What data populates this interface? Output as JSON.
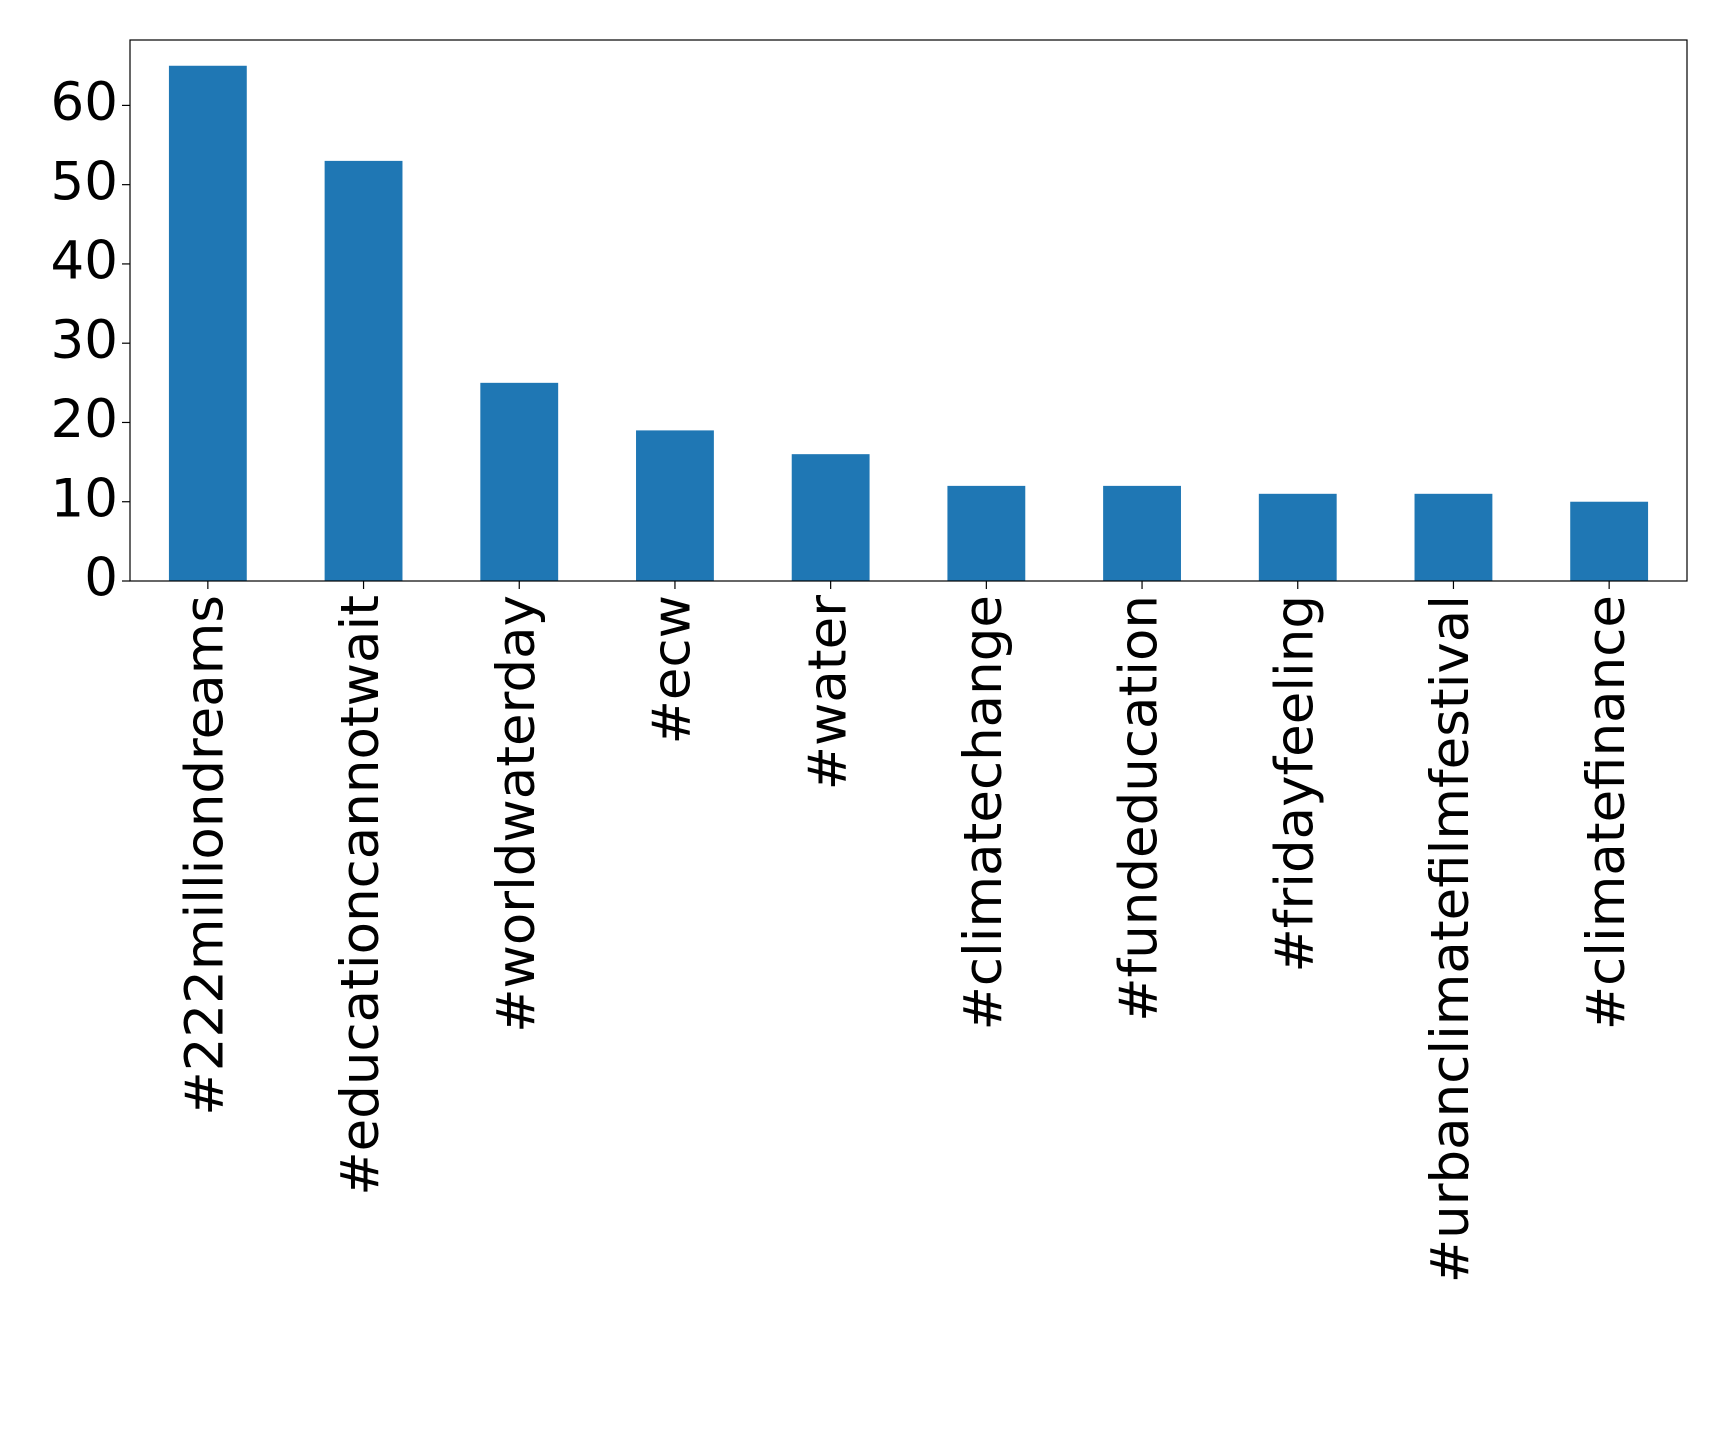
{
  "chart_data": {
    "type": "bar",
    "categories": [
      "#222milliondreams",
      "#educationcannotwait",
      "#worldwaterday",
      "#ecw",
      "#water",
      "#climatechange",
      "#fundeducation",
      "#fridayfeeling",
      "#urbanclimatefilmfestival",
      "#climatefinance"
    ],
    "values": [
      65,
      53,
      25,
      19,
      16,
      12,
      12,
      11,
      11,
      10
    ],
    "color": "#1f77b4",
    "ylim": [
      0,
      68.25
    ],
    "yticks": [
      0,
      10,
      20,
      30,
      40,
      50,
      60
    ],
    "grid": false
  }
}
